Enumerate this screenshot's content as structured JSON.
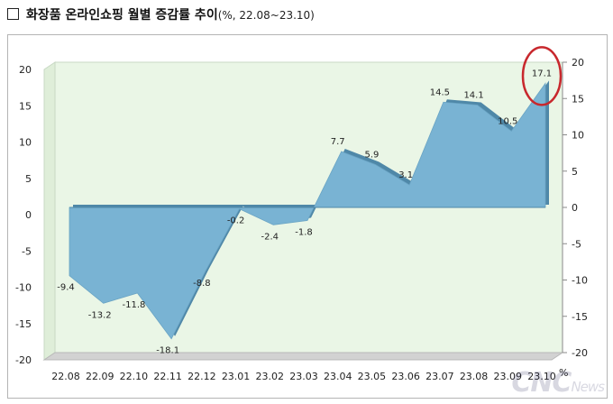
{
  "header": {
    "title_main": "화장품 온라인쇼핑 월별 증감률 추이",
    "title_sub": "(%, 22.08~23.10)"
  },
  "chart_data": {
    "type": "area",
    "categories": [
      "22.08",
      "22.09",
      "22.10",
      "22.11",
      "22.12",
      "23.01",
      "23.02",
      "23.03",
      "23.04",
      "23.05",
      "23.06",
      "23.07",
      "23.08",
      "23.09",
      "23.10"
    ],
    "values": [
      -9.4,
      -13.2,
      -11.8,
      -18.1,
      -8.8,
      -0.2,
      -2.4,
      -1.8,
      7.7,
      5.9,
      3.1,
      14.5,
      14.1,
      10.5,
      17.1
    ],
    "labels": [
      "-9.4",
      "-13.2",
      "-11.8",
      "-18.1",
      "-8.8",
      "-0.2",
      "-2.4",
      "-1.8",
      "7.7",
      "5.9",
      "3.1",
      "14.5",
      "14.1",
      "10.5",
      "17.1"
    ],
    "ylim": [
      -20,
      20
    ],
    "yticks": [
      20,
      15,
      10,
      5,
      0,
      -5,
      -10,
      -15,
      -20
    ],
    "yticks_right": [
      20,
      15,
      10,
      5,
      0,
      -5,
      -10,
      -15,
      -20
    ],
    "right_axis_unit": "%",
    "highlight_index": 14,
    "colors": {
      "fill": "#79b3d3",
      "top": "#4f88a8",
      "wall": "#eaf6e6",
      "wall_edge": "#c8d8c4",
      "floor": "#d2d2d2",
      "highlight": "#c8282d"
    }
  },
  "watermark": {
    "main": "CNC",
    "sub": "News"
  }
}
